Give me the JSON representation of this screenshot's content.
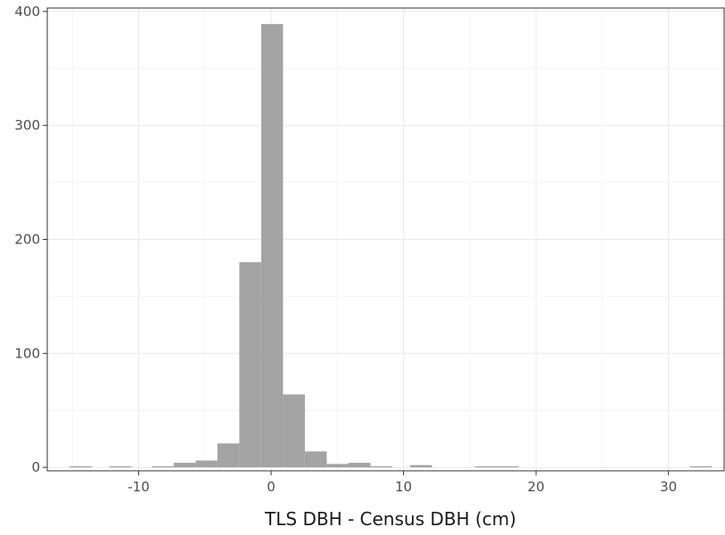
{
  "chart_data": {
    "type": "bar",
    "title": "",
    "xlabel": "TLS DBH - Census DBH (cm)",
    "ylabel": "",
    "xlim": [
      -16.9,
      34.2
    ],
    "ylim": [
      -3,
      403
    ],
    "x_ticks": [
      "-10",
      "0",
      "10",
      "20",
      "30"
    ],
    "x_tick_values": [
      -10,
      0,
      10,
      20,
      30
    ],
    "y_ticks": [
      "0",
      "100",
      "200",
      "300",
      "400"
    ],
    "y_tick_values": [
      0,
      100,
      200,
      300,
      400
    ],
    "bin_width": 1.65,
    "bins": [
      {
        "x0": -15.2,
        "x1": -13.55,
        "count": 1
      },
      {
        "x0": -12.2,
        "x1": -10.55,
        "count": 1
      },
      {
        "x0": -9.0,
        "x1": -7.35,
        "count": 1
      },
      {
        "x0": -7.35,
        "x1": -5.7,
        "count": 4
      },
      {
        "x0": -5.7,
        "x1": -4.05,
        "count": 6
      },
      {
        "x0": -4.05,
        "x1": -2.4,
        "count": 21
      },
      {
        "x0": -2.4,
        "x1": -0.75,
        "count": 180
      },
      {
        "x0": -0.75,
        "x1": 0.9,
        "count": 389
      },
      {
        "x0": 0.9,
        "x1": 2.55,
        "count": 64
      },
      {
        "x0": 2.55,
        "x1": 4.2,
        "count": 14
      },
      {
        "x0": 4.2,
        "x1": 5.85,
        "count": 3
      },
      {
        "x0": 5.85,
        "x1": 7.5,
        "count": 4
      },
      {
        "x0": 7.5,
        "x1": 9.15,
        "count": 1
      },
      {
        "x0": 10.5,
        "x1": 12.15,
        "count": 2
      },
      {
        "x0": 15.4,
        "x1": 17.05,
        "count": 1
      },
      {
        "x0": 17.05,
        "x1": 18.7,
        "count": 1
      },
      {
        "x0": 31.6,
        "x1": 33.25,
        "count": 1
      }
    ],
    "grid": true,
    "colors": {
      "bar": "#a3a3a3",
      "grid_major": "#ebebeb",
      "grid_minor": "#f4f4f4",
      "panel_border": "#333333"
    }
  }
}
